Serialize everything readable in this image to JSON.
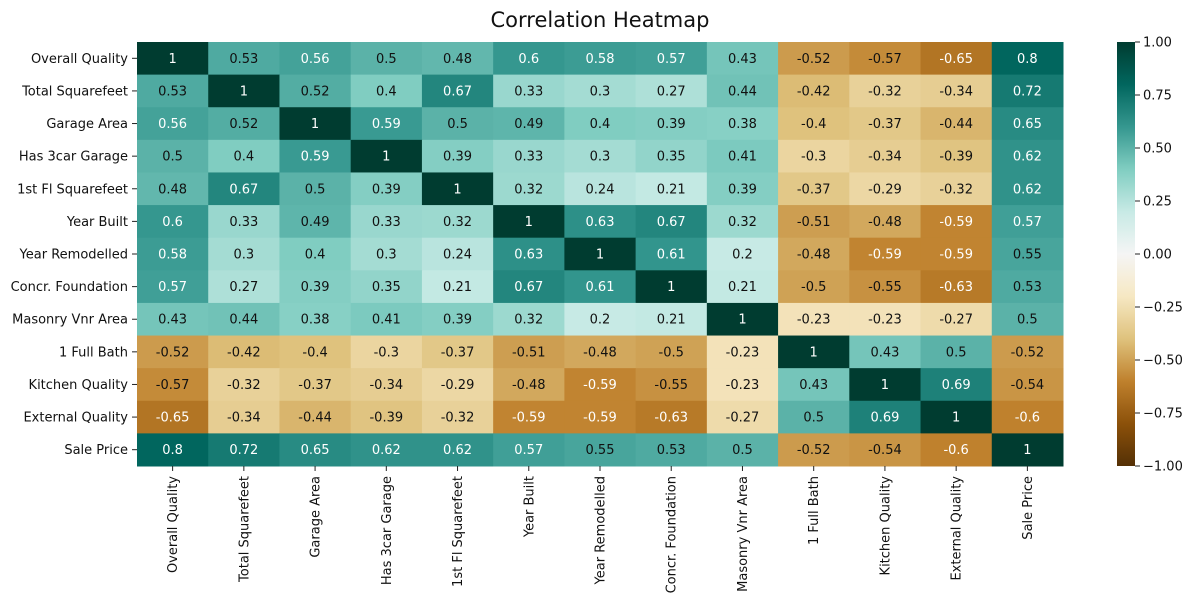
{
  "chart_data": {
    "type": "heatmap",
    "title": "Correlation Heatmap",
    "colormap": "BrBG",
    "vmin": -1.0,
    "vmax": 1.0,
    "colorbar_ticks": [
      "1.00",
      "0.75",
      "0.50",
      "0.25",
      "0.00",
      "−0.25",
      "−0.50",
      "−0.75",
      "−1.00"
    ],
    "colorbar_tick_values": [
      1,
      0.75,
      0.5,
      0.25,
      0,
      -0.25,
      -0.5,
      -0.75,
      -1
    ],
    "labels": [
      "Overall Quality",
      "Total Squarefeet",
      "Garage Area",
      "Has 3car Garage",
      "1st Fl Squarefeet",
      "Year Built",
      "Year Remodelled",
      "Concr. Foundation",
      "Masonry Vnr Area",
      "1 Full Bath",
      "Kitchen Quality",
      "External Quality",
      "Sale Price"
    ],
    "matrix": [
      [
        1,
        0.53,
        0.56,
        0.5,
        0.48,
        0.6,
        0.58,
        0.57,
        0.43,
        -0.52,
        -0.57,
        -0.65,
        0.8
      ],
      [
        0.53,
        1,
        0.52,
        0.4,
        0.67,
        0.33,
        0.3,
        0.27,
        0.44,
        -0.42,
        -0.32,
        -0.34,
        0.72
      ],
      [
        0.56,
        0.52,
        1,
        0.59,
        0.5,
        0.49,
        0.4,
        0.39,
        0.38,
        -0.4,
        -0.37,
        -0.44,
        0.65
      ],
      [
        0.5,
        0.4,
        0.59,
        1,
        0.39,
        0.33,
        0.3,
        0.35,
        0.41,
        -0.3,
        -0.34,
        -0.39,
        0.62
      ],
      [
        0.48,
        0.67,
        0.5,
        0.39,
        1,
        0.32,
        0.24,
        0.21,
        0.39,
        -0.37,
        -0.29,
        -0.32,
        0.62
      ],
      [
        0.6,
        0.33,
        0.49,
        0.33,
        0.32,
        1,
        0.63,
        0.67,
        0.32,
        -0.51,
        -0.48,
        -0.59,
        0.57
      ],
      [
        0.58,
        0.3,
        0.4,
        0.3,
        0.24,
        0.63,
        1,
        0.61,
        0.2,
        -0.48,
        -0.59,
        -0.59,
        0.55
      ],
      [
        0.57,
        0.27,
        0.39,
        0.35,
        0.21,
        0.67,
        0.61,
        1,
        0.21,
        -0.5,
        -0.55,
        -0.63,
        0.53
      ],
      [
        0.43,
        0.44,
        0.38,
        0.41,
        0.39,
        0.32,
        0.2,
        0.21,
        1,
        -0.23,
        -0.23,
        -0.27,
        0.5
      ],
      [
        -0.52,
        -0.42,
        -0.4,
        -0.3,
        -0.37,
        -0.51,
        -0.48,
        -0.5,
        -0.23,
        1,
        0.43,
        0.5,
        -0.52
      ],
      [
        -0.57,
        -0.32,
        -0.37,
        -0.34,
        -0.29,
        -0.48,
        -0.59,
        -0.55,
        -0.23,
        0.43,
        1,
        0.69,
        -0.54
      ],
      [
        -0.65,
        -0.34,
        -0.44,
        -0.39,
        -0.32,
        -0.59,
        -0.59,
        -0.63,
        -0.27,
        0.5,
        0.69,
        1,
        -0.6
      ],
      [
        0.8,
        0.72,
        0.65,
        0.62,
        0.62,
        0.57,
        0.55,
        0.53,
        0.5,
        -0.52,
        -0.54,
        -0.6,
        1
      ]
    ]
  }
}
